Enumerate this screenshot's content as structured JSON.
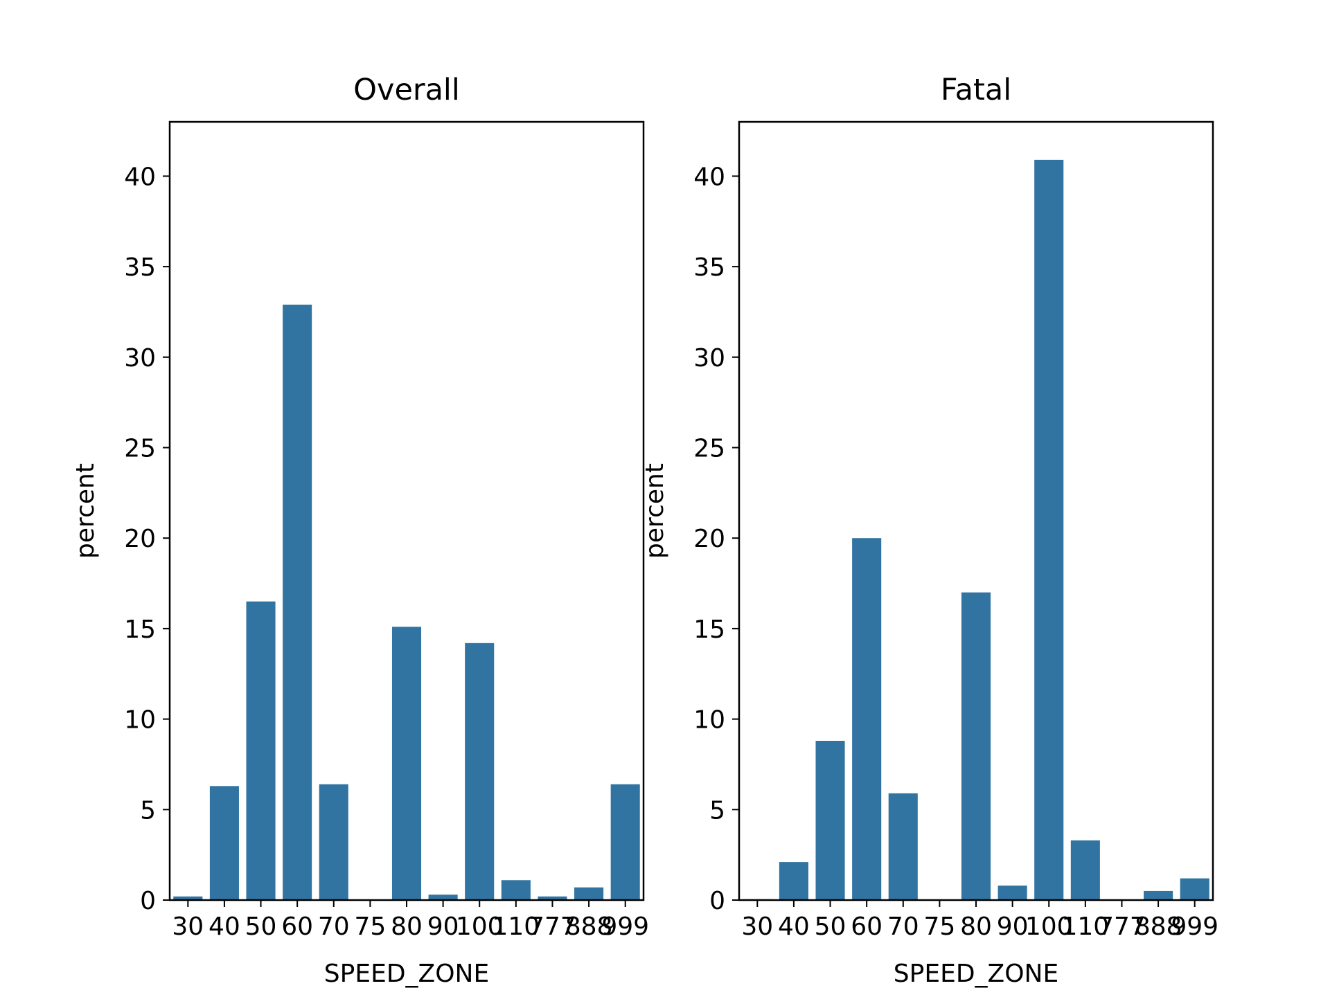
{
  "chart_data": [
    {
      "type": "bar",
      "title": "Overall",
      "xlabel": "SPEED_ZONE",
      "ylabel": "percent",
      "categories": [
        "30",
        "40",
        "50",
        "60",
        "70",
        "75",
        "80",
        "90",
        "100",
        "110",
        "777",
        "888",
        "999"
      ],
      "values": [
        0.2,
        6.3,
        16.5,
        32.9,
        6.4,
        0.0,
        15.1,
        0.3,
        14.2,
        1.1,
        0.2,
        0.7,
        6.4
      ],
      "ylim": [
        0,
        43
      ],
      "yticks": [
        0,
        5,
        10,
        15,
        20,
        25,
        30,
        35,
        40
      ],
      "bar_color": "#3274a1",
      "grid": false
    },
    {
      "type": "bar",
      "title": "Fatal",
      "xlabel": "SPEED_ZONE",
      "ylabel": "percent",
      "categories": [
        "30",
        "40",
        "50",
        "60",
        "70",
        "75",
        "80",
        "90",
        "100",
        "110",
        "777",
        "888",
        "999"
      ],
      "values": [
        0.05,
        2.1,
        8.8,
        20.0,
        5.9,
        0.0,
        17.0,
        0.8,
        40.9,
        3.3,
        0.0,
        0.5,
        1.2
      ],
      "ylim": [
        0,
        43
      ],
      "yticks": [
        0,
        5,
        10,
        15,
        20,
        25,
        30,
        35,
        40
      ],
      "bar_color": "#3274a1",
      "grid": false
    }
  ]
}
